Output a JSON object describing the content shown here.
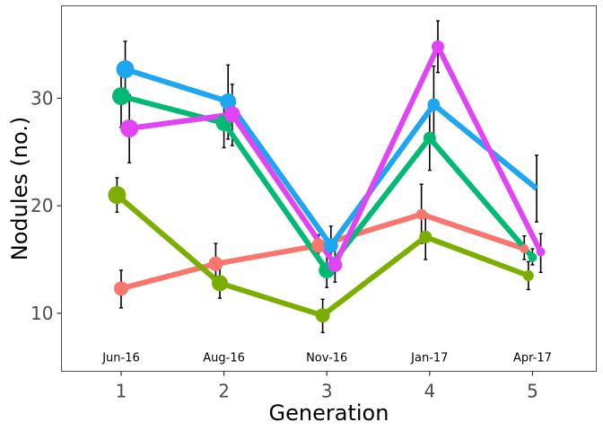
{
  "chart_data": {
    "type": "line",
    "xlabel": "Generation",
    "ylabel": "Nodules (no.)",
    "x": [
      1,
      2,
      3,
      4,
      5
    ],
    "x_tick_labels": [
      "1",
      "2",
      "3",
      "4",
      "5"
    ],
    "y_ticks": [
      10,
      20,
      30
    ],
    "y_tick_labels": [
      "10",
      "20",
      "30"
    ],
    "xlim": [
      0.42,
      5.62
    ],
    "ylim": [
      4.6,
      38.6
    ],
    "annotations": [
      {
        "x": 1,
        "text": "Jun-16"
      },
      {
        "x": 2,
        "text": "Aug-16"
      },
      {
        "x": 3,
        "text": "Nov-16"
      },
      {
        "x": 4,
        "text": "Jan-17"
      },
      {
        "x": 5,
        "text": "Apr-17"
      }
    ],
    "grid": false,
    "legend": "none",
    "series": [
      {
        "color": "#F8766D",
        "values": [
          12.3,
          14.6,
          16.3,
          19.2,
          16.0
        ],
        "x_offset": [
          0.0,
          -0.08,
          -0.08,
          -0.08,
          -0.08
        ],
        "err_low": [
          10.5,
          13.3,
          15.3,
          16.5,
          15.0
        ],
        "err_high": [
          14.0,
          16.5,
          17.3,
          22.0,
          17.2
        ],
        "point_sizes": [
          8,
          8,
          8,
          6,
          5
        ]
      },
      {
        "color": "#7CAE00",
        "values": [
          21.0,
          12.8,
          9.8,
          17.1,
          13.5
        ],
        "x_offset": [
          -0.04,
          -0.04,
          -0.04,
          -0.04,
          -0.04
        ],
        "err_low": [
          19.4,
          11.4,
          8.2,
          15.0,
          12.2
        ],
        "err_high": [
          22.6,
          14.3,
          11.3,
          19.3,
          14.8
        ],
        "point_sizes": [
          10,
          9,
          8,
          7,
          6
        ]
      },
      {
        "color": "#00BA74",
        "values": [
          30.2,
          27.7,
          14.0,
          26.3,
          15.2
        ],
        "x_offset": [
          0.0,
          0.0,
          0.0,
          0.0,
          0.0
        ],
        "err_low": [
          27.3,
          25.4,
          12.4,
          23.3,
          14.5
        ],
        "err_high": [
          33.1,
          30.0,
          15.6,
          29.3,
          16.0
        ],
        "point_sizes": [
          10,
          9,
          9,
          7,
          5
        ]
      },
      {
        "color": "#1FA6F0",
        "values": [
          32.7,
          29.7,
          16.3,
          29.4,
          21.6
        ],
        "x_offset": [
          0.04,
          0.04,
          0.04,
          0.04,
          0.04
        ],
        "err_low": [
          30.0,
          26.2,
          14.5,
          25.8,
          18.5
        ],
        "err_high": [
          35.3,
          33.1,
          18.1,
          33.0,
          24.7
        ],
        "point_sizes": [
          10,
          9,
          8,
          7,
          0
        ]
      },
      {
        "color": "#E044F4",
        "values": [
          27.2,
          28.5,
          14.5,
          34.8,
          15.7
        ],
        "x_offset": [
          0.08,
          0.08,
          0.08,
          0.08,
          0.08
        ],
        "err_low": [
          24.0,
          25.6,
          12.9,
          32.4,
          13.8
        ],
        "err_high": [
          30.3,
          31.3,
          16.1,
          37.2,
          17.4
        ],
        "point_sizes": [
          10,
          9,
          8,
          7,
          5
        ]
      }
    ]
  }
}
